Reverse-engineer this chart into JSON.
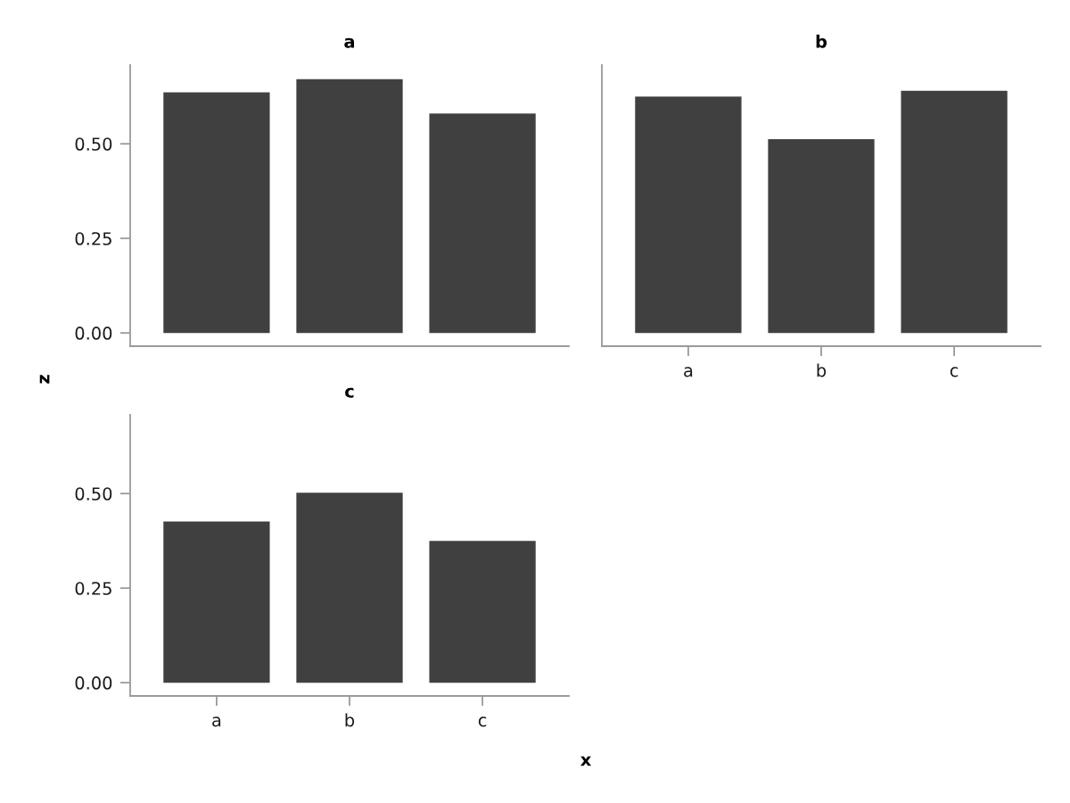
{
  "chart_data": [
    {
      "type": "bar",
      "title": "a",
      "xlabel": "x",
      "ylabel": "z",
      "categories": [
        null,
        null,
        null
      ],
      "values": [
        0.636,
        0.671,
        0.58
      ],
      "color": "#404040",
      "ylim": [
        -0.035,
        0.708
      ],
      "yticks": [
        {
          "value": 0,
          "label": "0.00"
        },
        {
          "value": 0.25,
          "label": "0.25"
        },
        {
          "value": 0.5,
          "label": "0.50"
        }
      ],
      "tick_labels": "y"
    },
    {
      "type": "bar",
      "title": "b",
      "categories": [
        "a",
        "b",
        "c"
      ],
      "values": [
        0.625,
        0.512,
        0.64
      ],
      "color": "#404040",
      "ylim": [
        -0.035,
        0.708
      ],
      "tick_labels": "x"
    },
    {
      "type": "bar",
      "title": "c",
      "categories": [
        "a",
        "b",
        "c"
      ],
      "values": [
        0.426,
        0.502,
        0.375
      ],
      "color": "#404040",
      "ylim": [
        -0.035,
        0.708
      ],
      "yticks": [
        {
          "value": 0,
          "label": "0.00"
        },
        {
          "value": 0.25,
          "label": "0.25"
        },
        {
          "value": 0.5,
          "label": "0.50"
        }
      ]
    }
  ]
}
